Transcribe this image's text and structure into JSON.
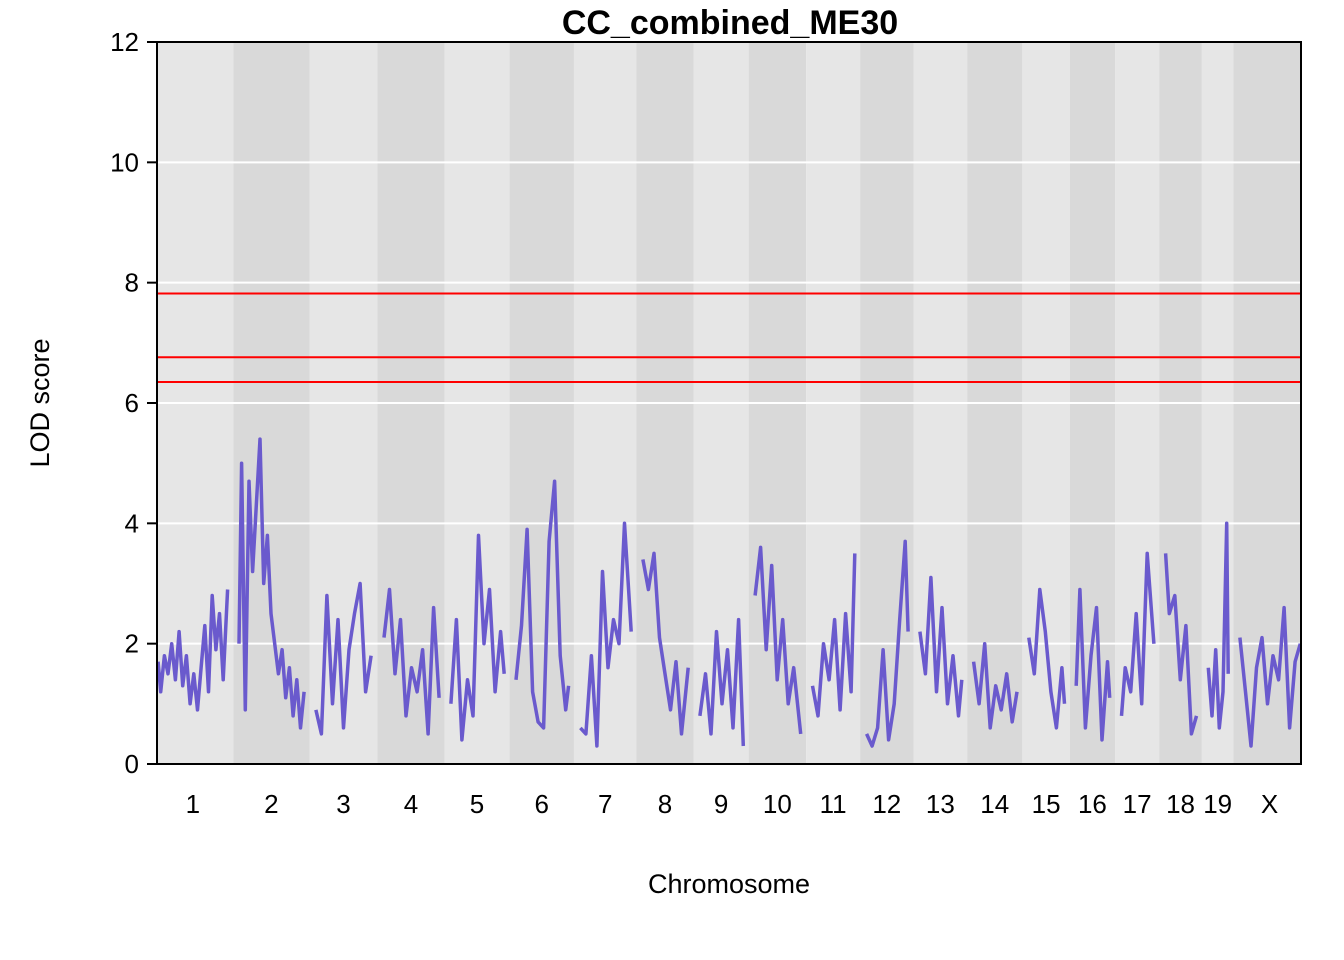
{
  "chart_data": {
    "type": "line",
    "title": "CC_combined_ME30",
    "xlabel": "Chromosome",
    "ylabel": "LOD score",
    "ylim": [
      0,
      12
    ],
    "yticks": [
      "0",
      "2",
      "4",
      "6",
      "8",
      "10",
      "12"
    ],
    "grid": true,
    "series_color": "#6A5ACD",
    "threshold_color": "#FF0000",
    "thresholds": [
      7.82,
      6.76,
      6.35
    ],
    "chromosomes": [
      {
        "label": "1",
        "size": 195
      },
      {
        "label": "2",
        "size": 182
      },
      {
        "label": "3",
        "size": 160
      },
      {
        "label": "4",
        "size": 157
      },
      {
        "label": "5",
        "size": 152
      },
      {
        "label": "6",
        "size": 150
      },
      {
        "label": "7",
        "size": 145
      },
      {
        "label": "8",
        "size": 130
      },
      {
        "label": "9",
        "size": 125
      },
      {
        "label": "10",
        "size": 131
      },
      {
        "label": "11",
        "size": 122
      },
      {
        "label": "12",
        "size": 120
      },
      {
        "label": "13",
        "size": 121
      },
      {
        "label": "14",
        "size": 125
      },
      {
        "label": "15",
        "size": 104
      },
      {
        "label": "16",
        "size": 98
      },
      {
        "label": "17",
        "size": 95
      },
      {
        "label": "18",
        "size": 91
      },
      {
        "label": "19",
        "size": 61
      },
      {
        "label": "X",
        "size": 171
      }
    ],
    "series": [
      {
        "chromosome": "1",
        "x": [
          3,
          10,
          20,
          30,
          40,
          50,
          60,
          70,
          80,
          90,
          100,
          110,
          120,
          130,
          140,
          150,
          160,
          170,
          180,
          192
        ],
        "y": [
          1.7,
          1.2,
          1.8,
          1.5,
          2.0,
          1.4,
          2.2,
          1.3,
          1.8,
          1.0,
          1.5,
          0.9,
          1.6,
          2.3,
          1.2,
          2.8,
          1.9,
          2.5,
          1.4,
          2.9
        ]
      },
      {
        "chromosome": "2",
        "x": [
          3,
          10,
          20,
          30,
          40,
          50,
          60,
          70,
          80,
          90,
          100,
          110,
          120,
          130,
          140,
          150,
          160,
          170,
          180
        ],
        "y": [
          2.0,
          5.0,
          0.9,
          4.7,
          3.2,
          4.3,
          5.4,
          3.0,
          3.8,
          2.5,
          2.0,
          1.5,
          1.9,
          1.1,
          1.6,
          0.8,
          1.4,
          0.6,
          1.2
        ]
      },
      {
        "chromosome": "3",
        "x": [
          5,
          20,
          35,
          50,
          65,
          80,
          95,
          110,
          125,
          140,
          155
        ],
        "y": [
          0.9,
          0.5,
          2.8,
          1.0,
          2.4,
          0.6,
          1.9,
          2.5,
          3.0,
          1.2,
          1.8
        ]
      },
      {
        "chromosome": "4",
        "x": [
          5,
          20,
          35,
          50,
          65,
          80,
          95,
          110,
          125,
          140,
          155
        ],
        "y": [
          2.1,
          2.9,
          1.5,
          2.4,
          0.8,
          1.6,
          1.2,
          1.9,
          0.5,
          2.6,
          1.1
        ]
      },
      {
        "chromosome": "5",
        "x": [
          5,
          20,
          35,
          50,
          65,
          80,
          95,
          110,
          125,
          140,
          150
        ],
        "y": [
          1.0,
          2.4,
          0.4,
          1.4,
          0.8,
          3.8,
          2.0,
          2.9,
          1.2,
          2.2,
          1.5
        ]
      },
      {
        "chromosome": "6",
        "x": [
          5,
          20,
          35,
          50,
          65,
          80,
          95,
          110,
          125,
          140,
          148
        ],
        "y": [
          1.4,
          2.3,
          3.9,
          1.2,
          0.7,
          0.6,
          3.7,
          4.7,
          1.8,
          0.9,
          1.3
        ]
      },
      {
        "chromosome": "7",
        "x": [
          5,
          20,
          35,
          50,
          65,
          80,
          95,
          110,
          125,
          143
        ],
        "y": [
          0.6,
          0.5,
          1.8,
          0.3,
          3.2,
          1.6,
          2.4,
          2.0,
          4.0,
          2.2
        ]
      },
      {
        "chromosome": "8",
        "x": [
          5,
          20,
          35,
          50,
          65,
          80,
          95,
          110,
          128
        ],
        "y": [
          3.4,
          2.9,
          3.5,
          2.1,
          1.5,
          0.9,
          1.7,
          0.5,
          1.6
        ]
      },
      {
        "chromosome": "9",
        "x": [
          5,
          20,
          35,
          50,
          65,
          80,
          95,
          110,
          123
        ],
        "y": [
          0.8,
          1.5,
          0.5,
          2.2,
          1.0,
          1.9,
          0.6,
          2.4,
          0.3
        ]
      },
      {
        "chromosome": "10",
        "x": [
          5,
          20,
          35,
          50,
          65,
          80,
          95,
          110,
          129
        ],
        "y": [
          2.8,
          3.6,
          1.9,
          3.3,
          1.4,
          2.4,
          1.0,
          1.6,
          0.5
        ]
      },
      {
        "chromosome": "11",
        "x": [
          5,
          20,
          35,
          50,
          65,
          80,
          95,
          110,
          120
        ],
        "y": [
          1.3,
          0.8,
          2.0,
          1.4,
          2.4,
          0.9,
          2.5,
          1.2,
          3.5
        ]
      },
      {
        "chromosome": "12",
        "x": [
          5,
          20,
          35,
          50,
          65,
          80,
          95,
          110,
          118
        ],
        "y": [
          0.5,
          0.3,
          0.6,
          1.9,
          0.4,
          1.0,
          2.4,
          3.7,
          2.2
        ]
      },
      {
        "chromosome": "13",
        "x": [
          5,
          20,
          35,
          50,
          65,
          80,
          95,
          110,
          119
        ],
        "y": [
          2.2,
          1.5,
          3.1,
          1.2,
          2.6,
          1.0,
          1.8,
          0.8,
          1.4
        ]
      },
      {
        "chromosome": "14",
        "x": [
          5,
          20,
          35,
          50,
          65,
          80,
          95,
          110,
          123
        ],
        "y": [
          1.7,
          1.0,
          2.0,
          0.6,
          1.3,
          0.9,
          1.5,
          0.7,
          1.2
        ]
      },
      {
        "chromosome": "15",
        "x": [
          5,
          20,
          35,
          50,
          65,
          80,
          95,
          102
        ],
        "y": [
          2.1,
          1.5,
          2.9,
          2.2,
          1.2,
          0.6,
          1.6,
          1.0
        ]
      },
      {
        "chromosome": "16",
        "x": [
          5,
          15,
          30,
          45,
          60,
          75,
          90,
          96
        ],
        "y": [
          1.3,
          2.9,
          0.6,
          1.8,
          2.6,
          0.4,
          1.7,
          1.1
        ]
      },
      {
        "chromosome": "17",
        "x": [
          5,
          15,
          30,
          45,
          60,
          75,
          93
        ],
        "y": [
          0.8,
          1.6,
          1.2,
          2.5,
          1.0,
          3.5,
          2.0
        ]
      },
      {
        "chromosome": "18",
        "x": [
          5,
          15,
          30,
          45,
          60,
          75,
          89
        ],
        "y": [
          3.5,
          2.5,
          2.8,
          1.4,
          2.3,
          0.5,
          0.8
        ]
      },
      {
        "chromosome": "19",
        "x": [
          5,
          15,
          25,
          35,
          45,
          55,
          59
        ],
        "y": [
          1.6,
          0.8,
          1.9,
          0.6,
          1.2,
          4.0,
          1.5
        ]
      },
      {
        "chromosome": "X",
        "x": [
          5,
          20,
          35,
          50,
          65,
          80,
          95,
          110,
          125,
          140,
          155,
          169
        ],
        "y": [
          2.1,
          1.2,
          0.3,
          1.6,
          2.1,
          1.0,
          1.8,
          1.4,
          2.6,
          0.6,
          1.7,
          2.0
        ]
      }
    ]
  }
}
